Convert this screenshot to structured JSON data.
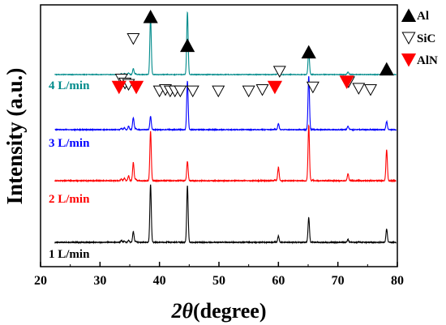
{
  "chart_data": {
    "type": "line",
    "title": "",
    "xlabel_symbol": "2θ",
    "xlabel_unit": "(degree)",
    "ylabel": "Intensity (a.u.)",
    "xlim": [
      20,
      80
    ],
    "xticks": [
      20,
      30,
      40,
      50,
      60,
      70,
      80
    ],
    "y_ticks_shown": false,
    "grid": false,
    "legend_position": "top-right",
    "legend": [
      {
        "name": "Al",
        "marker": "filled-triangle-up",
        "color": "#000000"
      },
      {
        "name": "SiC",
        "marker": "open-triangle-down",
        "color": "#000000"
      },
      {
        "name": "AlN",
        "marker": "filled-triangle-down",
        "color": "#ff0000"
      }
    ],
    "peaks": [
      {
        "x": 33.6,
        "h": 0.18
      },
      {
        "x": 34.1,
        "h": 0.22
      },
      {
        "x": 34.8,
        "h": 0.28
      },
      {
        "x": 35.6,
        "h": 0.55
      },
      {
        "x": 36.0,
        "h": 0.2
      },
      {
        "x": 38.5,
        "h": 1.0
      },
      {
        "x": 41.4,
        "h": 0.08
      },
      {
        "x": 43.2,
        "h": 0.07
      },
      {
        "x": 44.7,
        "h": 1.0
      },
      {
        "x": 54.6,
        "h": 0.05
      },
      {
        "x": 57.2,
        "h": 0.06
      },
      {
        "x": 59.4,
        "h": 0.12
      },
      {
        "x": 60.0,
        "h": 0.42
      },
      {
        "x": 65.1,
        "h": 1.0
      },
      {
        "x": 65.8,
        "h": 0.1
      },
      {
        "x": 71.7,
        "h": 0.3
      },
      {
        "x": 72.2,
        "h": 0.1
      },
      {
        "x": 73.5,
        "h": 0.07
      },
      {
        "x": 75.5,
        "h": 0.05
      },
      {
        "x": 78.2,
        "h": 0.75
      }
    ],
    "series": [
      {
        "name": "1 L/min",
        "color": "#000000",
        "scale": [
          0.35,
          0.2,
          0.25,
          0.7,
          0.2,
          2.1,
          0.12,
          0.1,
          2.05,
          0.06,
          0.06,
          0.1,
          0.55,
          0.9,
          0.12,
          0.35,
          0.12,
          0.08,
          0.05,
          0.65
        ]
      },
      {
        "name": "2 L/min",
        "color": "#ff0000",
        "scale": [
          0.35,
          0.4,
          0.6,
          1.2,
          0.3,
          1.8,
          0.15,
          0.12,
          0.7,
          0.08,
          0.1,
          0.2,
          1.15,
          2.0,
          0.2,
          0.85,
          0.2,
          0.1,
          0.08,
          1.5
        ]
      },
      {
        "name": "3 L/min",
        "color": "#0000ff",
        "scale": [
          0.3,
          0.35,
          0.5,
          0.9,
          0.25,
          0.55,
          0.1,
          0.1,
          2.0,
          0.06,
          0.08,
          0.15,
          0.6,
          2.2,
          0.15,
          0.5,
          0.15,
          0.1,
          0.06,
          0.45
        ]
      },
      {
        "name": "4 L/min",
        "color": "#008b8b",
        "scale": [
          0.25,
          0.3,
          0.35,
          0.6,
          0.2,
          3.2,
          0.08,
          0.08,
          3.5,
          0.05,
          0.05,
          0.1,
          0.4,
          1.3,
          0.1,
          0.5,
          0.1,
          0.06,
          0.05,
          0.55
        ]
      }
    ],
    "markers": [
      {
        "type": "Al",
        "x": 38.5,
        "y": 0.955
      },
      {
        "type": "Al",
        "x": 44.7,
        "y": 0.845
      },
      {
        "type": "Al",
        "x": 65.1,
        "y": 0.82
      },
      {
        "type": "Al",
        "x": 78.2,
        "y": 0.755
      },
      {
        "type": "SiC",
        "x": 35.6,
        "y": 0.87
      },
      {
        "type": "SiC",
        "x": 33.6,
        "y": 0.715
      },
      {
        "type": "SiC",
        "x": 34.2,
        "y": 0.7
      },
      {
        "type": "SiC",
        "x": 34.8,
        "y": 0.695
      },
      {
        "type": "SiC",
        "x": 40.0,
        "y": 0.67
      },
      {
        "type": "SiC",
        "x": 41.0,
        "y": 0.675
      },
      {
        "type": "SiC",
        "x": 41.8,
        "y": 0.67
      },
      {
        "type": "SiC",
        "x": 42.6,
        "y": 0.67
      },
      {
        "type": "SiC",
        "x": 43.5,
        "y": 0.67
      },
      {
        "type": "SiC",
        "x": 45.6,
        "y": 0.67
      },
      {
        "type": "SiC",
        "x": 49.9,
        "y": 0.67
      },
      {
        "type": "SiC",
        "x": 55.0,
        "y": 0.67
      },
      {
        "type": "SiC",
        "x": 57.3,
        "y": 0.675
      },
      {
        "type": "SiC",
        "x": 60.2,
        "y": 0.745
      },
      {
        "type": "SiC",
        "x": 65.8,
        "y": 0.685
      },
      {
        "type": "SiC",
        "x": 71.8,
        "y": 0.705
      },
      {
        "type": "SiC",
        "x": 73.5,
        "y": 0.68
      },
      {
        "type": "SiC",
        "x": 75.5,
        "y": 0.675
      },
      {
        "type": "AlN",
        "x": 33.2,
        "y": 0.685
      },
      {
        "type": "AlN",
        "x": 36.1,
        "y": 0.685
      },
      {
        "type": "AlN",
        "x": 59.4,
        "y": 0.685
      },
      {
        "type": "AlN",
        "x": 71.5,
        "y": 0.705
      }
    ]
  }
}
